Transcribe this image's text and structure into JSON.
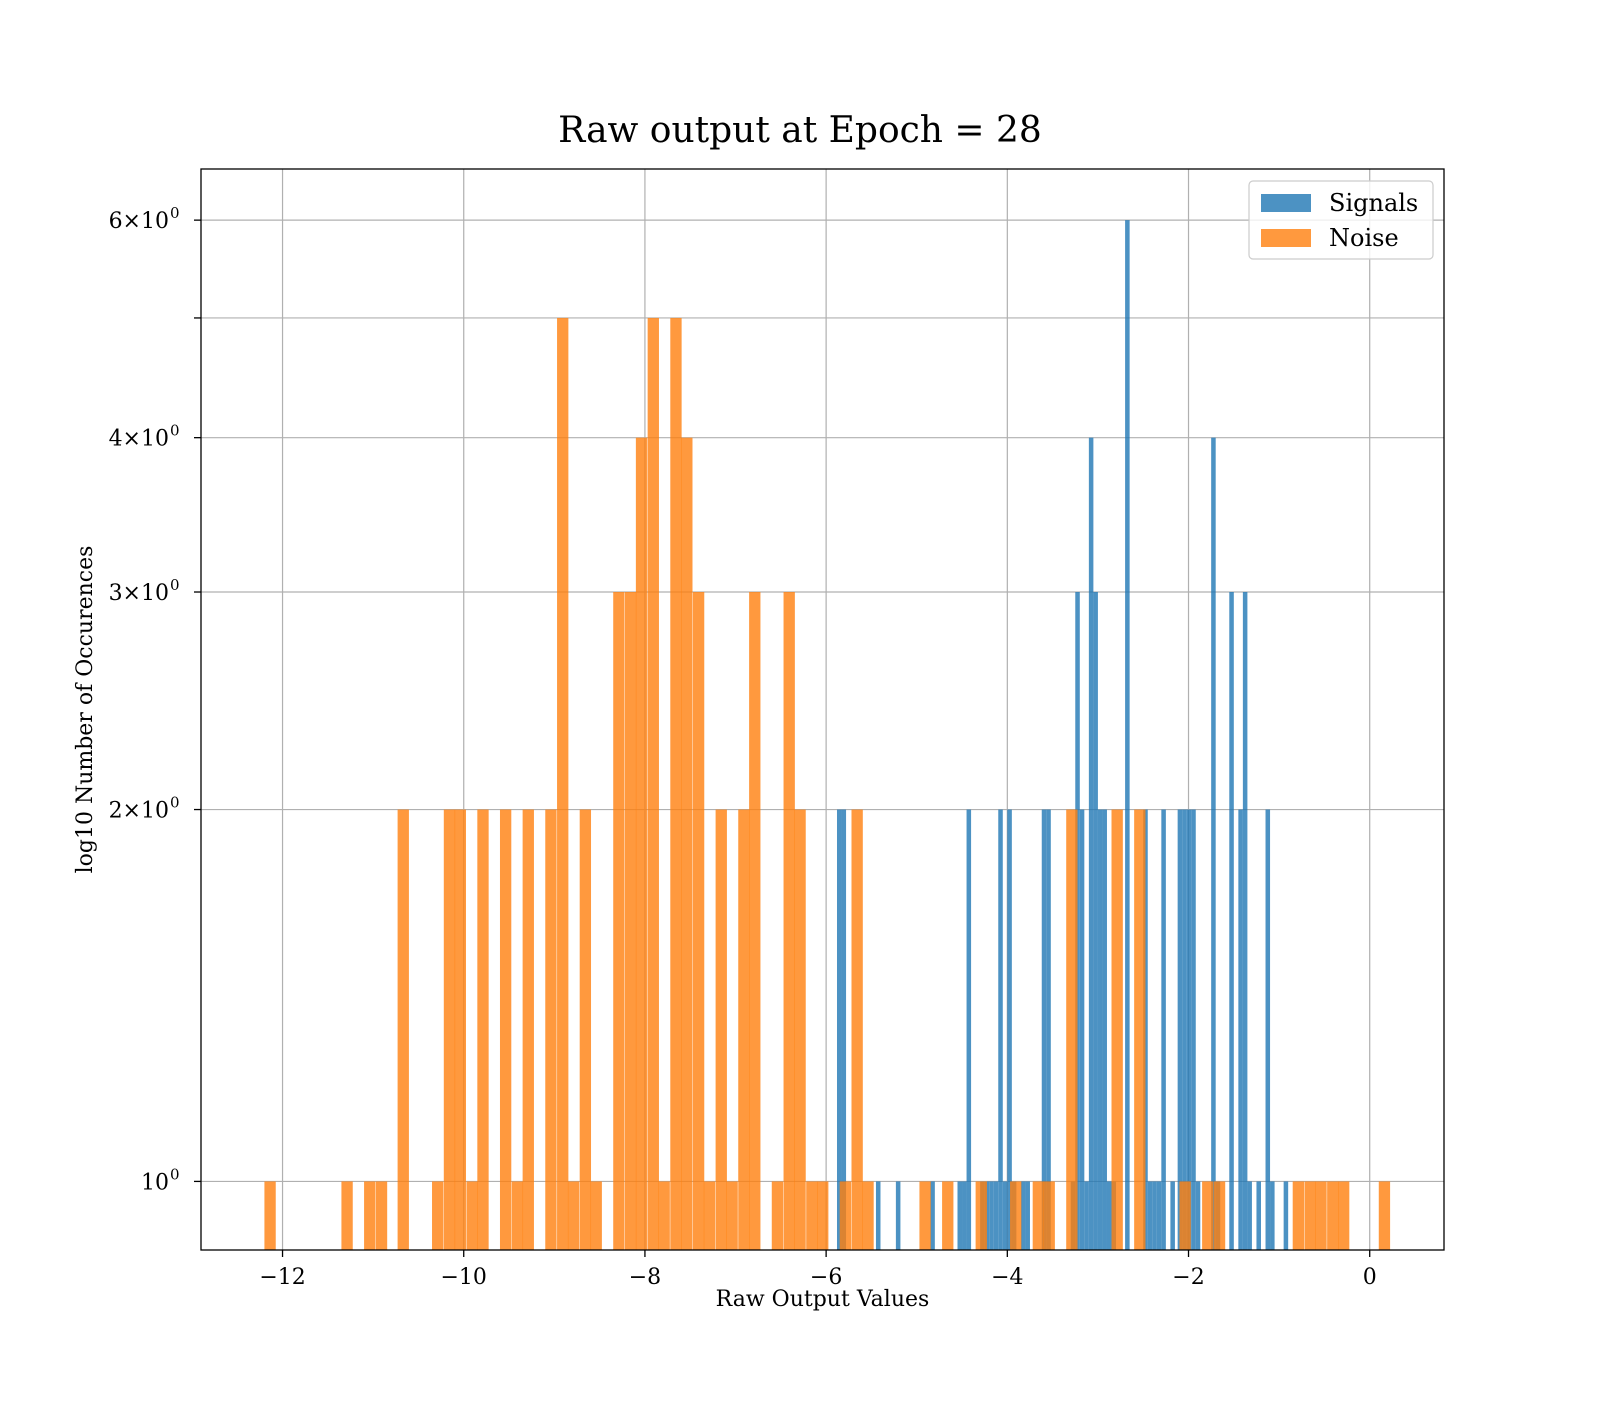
{
  "chart_data": {
    "type": "bar",
    "title": "Raw output at Epoch = 28",
    "xlabel": "Raw Output Values",
    "ylabel": "log10 Number of Occurences",
    "xlim": [
      -12.9,
      0.82
    ],
    "ylim": [
      0.88,
      6.6
    ],
    "y_scale": "log",
    "grid": true,
    "legend_position": "top-right",
    "x_ticks": [
      {
        "value": -12,
        "label": "−12"
      },
      {
        "value": -10,
        "label": "−10"
      },
      {
        "value": -8,
        "label": "−8"
      },
      {
        "value": -6,
        "label": "−6"
      },
      {
        "value": -4,
        "label": "−4"
      },
      {
        "value": -2,
        "label": "−2"
      },
      {
        "value": 0,
        "label": "0"
      }
    ],
    "y_ticks": [
      {
        "value": 1,
        "label": "10",
        "sup": "0"
      },
      {
        "value": 2,
        "label": "2×10",
        "sup": "0"
      },
      {
        "value": 3,
        "label": "3×10",
        "sup": "0"
      },
      {
        "value": 4,
        "label": "4×10",
        "sup": "0"
      },
      {
        "value": 5,
        "label": "",
        "sup": ""
      },
      {
        "value": 6,
        "label": "6×10",
        "sup": "0"
      }
    ],
    "series": [
      {
        "name": "Signals",
        "color": "#1f77b4",
        "opacity": 0.8,
        "bin_width": 0.05,
        "bins": [
          {
            "x": -5.88,
            "count": 2
          },
          {
            "x": -5.83,
            "count": 2
          },
          {
            "x": -5.45,
            "count": 1
          },
          {
            "x": -5.23,
            "count": 1
          },
          {
            "x": -4.85,
            "count": 1
          },
          {
            "x": -4.55,
            "count": 1
          },
          {
            "x": -4.5,
            "count": 1
          },
          {
            "x": -4.45,
            "count": 2
          },
          {
            "x": -4.3,
            "count": 1
          },
          {
            "x": -4.25,
            "count": 1
          },
          {
            "x": -4.2,
            "count": 1
          },
          {
            "x": -4.15,
            "count": 1
          },
          {
            "x": -4.1,
            "count": 2
          },
          {
            "x": -4.05,
            "count": 1
          },
          {
            "x": -4.0,
            "count": 2
          },
          {
            "x": -3.95,
            "count": 1
          },
          {
            "x": -3.85,
            "count": 1
          },
          {
            "x": -3.8,
            "count": 1
          },
          {
            "x": -3.62,
            "count": 2
          },
          {
            "x": -3.57,
            "count": 2
          },
          {
            "x": -3.3,
            "count": 1
          },
          {
            "x": -3.25,
            "count": 3
          },
          {
            "x": -3.2,
            "count": 2
          },
          {
            "x": -3.15,
            "count": 1
          },
          {
            "x": -3.1,
            "count": 4
          },
          {
            "x": -3.05,
            "count": 3
          },
          {
            "x": -3.0,
            "count": 2
          },
          {
            "x": -2.95,
            "count": 2
          },
          {
            "x": -2.9,
            "count": 1
          },
          {
            "x": -2.85,
            "count": 1
          },
          {
            "x": -2.7,
            "count": 6
          },
          {
            "x": -2.5,
            "count": 2
          },
          {
            "x": -2.45,
            "count": 1
          },
          {
            "x": -2.4,
            "count": 1
          },
          {
            "x": -2.35,
            "count": 1
          },
          {
            "x": -2.3,
            "count": 2
          },
          {
            "x": -2.2,
            "count": 1
          },
          {
            "x": -2.12,
            "count": 2
          },
          {
            "x": -2.07,
            "count": 2
          },
          {
            "x": -2.02,
            "count": 2
          },
          {
            "x": -1.97,
            "count": 2
          },
          {
            "x": -1.92,
            "count": 1
          },
          {
            "x": -1.75,
            "count": 4
          },
          {
            "x": -1.7,
            "count": 1
          },
          {
            "x": -1.55,
            "count": 3
          },
          {
            "x": -1.45,
            "count": 2
          },
          {
            "x": -1.4,
            "count": 3
          },
          {
            "x": -1.35,
            "count": 1
          },
          {
            "x": -1.25,
            "count": 1
          },
          {
            "x": -1.15,
            "count": 2
          },
          {
            "x": -1.1,
            "count": 1
          },
          {
            "x": -0.95,
            "count": 1
          }
        ]
      },
      {
        "name": "Noise",
        "color": "#ff7f0e",
        "opacity": 0.8,
        "bin_width": 0.125,
        "bins": [
          {
            "x": -12.2,
            "count": 1
          },
          {
            "x": -11.35,
            "count": 1
          },
          {
            "x": -11.1,
            "count": 1
          },
          {
            "x": -10.97,
            "count": 1
          },
          {
            "x": -10.73,
            "count": 2
          },
          {
            "x": -10.35,
            "count": 1
          },
          {
            "x": -10.22,
            "count": 2
          },
          {
            "x": -10.1,
            "count": 2
          },
          {
            "x": -9.97,
            "count": 1
          },
          {
            "x": -9.85,
            "count": 2
          },
          {
            "x": -9.6,
            "count": 2
          },
          {
            "x": -9.47,
            "count": 1
          },
          {
            "x": -9.35,
            "count": 2
          },
          {
            "x": -9.1,
            "count": 2
          },
          {
            "x": -8.97,
            "count": 5
          },
          {
            "x": -8.85,
            "count": 1
          },
          {
            "x": -8.72,
            "count": 2
          },
          {
            "x": -8.6,
            "count": 1
          },
          {
            "x": -8.35,
            "count": 3
          },
          {
            "x": -8.22,
            "count": 3
          },
          {
            "x": -8.1,
            "count": 4
          },
          {
            "x": -7.97,
            "count": 5
          },
          {
            "x": -7.85,
            "count": 1
          },
          {
            "x": -7.72,
            "count": 5
          },
          {
            "x": -7.6,
            "count": 4
          },
          {
            "x": -7.47,
            "count": 3
          },
          {
            "x": -7.35,
            "count": 1
          },
          {
            "x": -7.22,
            "count": 2
          },
          {
            "x": -7.1,
            "count": 1
          },
          {
            "x": -6.97,
            "count": 2
          },
          {
            "x": -6.85,
            "count": 3
          },
          {
            "x": -6.6,
            "count": 1
          },
          {
            "x": -6.47,
            "count": 3
          },
          {
            "x": -6.35,
            "count": 2
          },
          {
            "x": -6.22,
            "count": 1
          },
          {
            "x": -6.1,
            "count": 1
          },
          {
            "x": -5.85,
            "count": 1
          },
          {
            "x": -5.72,
            "count": 2
          },
          {
            "x": -5.6,
            "count": 1
          },
          {
            "x": -4.97,
            "count": 1
          },
          {
            "x": -4.72,
            "count": 1
          },
          {
            "x": -4.35,
            "count": 1
          },
          {
            "x": -3.97,
            "count": 1
          },
          {
            "x": -3.72,
            "count": 1
          },
          {
            "x": -3.6,
            "count": 1
          },
          {
            "x": -3.35,
            "count": 2
          },
          {
            "x": -2.85,
            "count": 2
          },
          {
            "x": -2.6,
            "count": 2
          },
          {
            "x": -2.1,
            "count": 1
          },
          {
            "x": -1.85,
            "count": 1
          },
          {
            "x": -1.72,
            "count": 1
          },
          {
            "x": -0.85,
            "count": 1
          },
          {
            "x": -0.72,
            "count": 1
          },
          {
            "x": -0.6,
            "count": 1
          },
          {
            "x": -0.47,
            "count": 1
          },
          {
            "x": -0.35,
            "count": 1
          },
          {
            "x": 0.1,
            "count": 1
          }
        ]
      }
    ]
  }
}
